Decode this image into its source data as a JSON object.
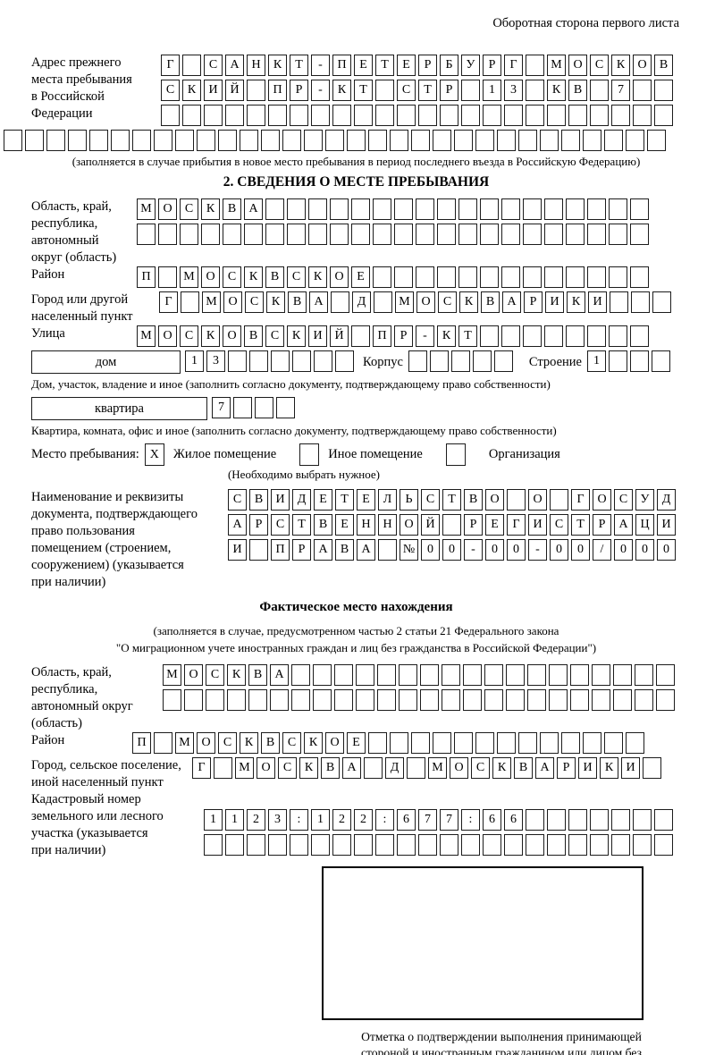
{
  "header": {
    "note": "Оборотная сторона первого листа"
  },
  "prev_address": {
    "label": "Адрес прежнего\nместа пребывания\nв Российской\nФедерации",
    "rows": [
      {
        "cells": 24,
        "text": "Г САНКТ-ПЕТЕРБУРГ МОСКОВ"
      },
      {
        "cells": 24,
        "text": "СКИЙ ПР-КТ СТР 13 КВ 7"
      },
      {
        "cells": 24,
        "text": ""
      }
    ],
    "overflow_row": {
      "cells": 31,
      "text": ""
    },
    "caption": "(заполняется в случае прибытия в новое место пребывания в период последнего въезда в Российскую Федерацию)"
  },
  "section2": {
    "title": "2. СВЕДЕНИЯ О МЕСТЕ ПРЕБЫВАНИЯ",
    "region": {
      "label": "Область, край,\nреспублика,\nавтономный\nокруг (область)",
      "rows": [
        {
          "cells": 24,
          "text": "МОСКВА"
        },
        {
          "cells": 24,
          "text": ""
        }
      ]
    },
    "district": {
      "label": "Район",
      "row": {
        "cells": 24,
        "text": "П МОСКВСКОЕ"
      }
    },
    "city": {
      "label": "Город или другой\nнаселенный пункт",
      "row": {
        "cells": 24,
        "text": "Г МОСКВА Д МОСКВАРИКИ"
      }
    },
    "street": {
      "label": "Улица",
      "row": {
        "cells": 24,
        "text": "МОСКОВСКИЙ ПР-КТ"
      }
    },
    "house": {
      "box_label": "дом",
      "row": {
        "cells": 8,
        "text": "13"
      },
      "korpus_label": "Корпус",
      "korpus_row": {
        "cells": 5,
        "text": ""
      },
      "stroenie_label": "Строение",
      "stroenie_row": {
        "cells": 4,
        "text": "1"
      },
      "caption": "Дом, участок, владение и иное (заполнить согласно документу, подтверждающему право собственности)"
    },
    "apartment": {
      "box_label": "квартира",
      "row": {
        "cells": 4,
        "text": "7"
      },
      "caption": "Квартира, комната, офис и иное (заполнить согласно документу, подтверждающему право собственности)"
    },
    "stay_type": {
      "label": "Место пребывания:",
      "options": [
        {
          "label": "Жилое помещение",
          "mark": "X"
        },
        {
          "label": "Иное помещение",
          "mark": ""
        },
        {
          "label": "Организация",
          "mark": ""
        }
      ],
      "note": "(Необходимо выбрать нужное)"
    },
    "document": {
      "label": "Наименование и реквизиты\nдокумента, подтверждающего\nправо пользования\nпомещением (строением,\nсооружением) (указывается\nпри наличии)",
      "rows": [
        {
          "cells": 21,
          "text": "СВИДЕТЕЛЬСТВО О ГОСУД"
        },
        {
          "cells": 21,
          "text": "АРСТВЕННОЙ РЕГИСТРАЦИ"
        },
        {
          "cells": 21,
          "text": "И ПРАВА №00-00-00/000"
        }
      ]
    }
  },
  "actual_location": {
    "title": "Фактическое место нахождения",
    "note": "(заполняется в случае, предусмотренном частью 2 статьи 21 Федерального закона\n\"О миграционном учете иностранных граждан и лиц без гражданства в Российской Федерации\")",
    "region": {
      "label": "Область, край,\nреспублика,\nавтономный округ\n(область)",
      "rows": [
        {
          "cells": 24,
          "text": "МОСКВА"
        },
        {
          "cells": 24,
          "text": ""
        }
      ]
    },
    "district": {
      "label": "Район",
      "row": {
        "cells": 24,
        "text": "П МОСКВСКОЕ"
      }
    },
    "city": {
      "label": "Город, сельское поселение,\nиной населенный пункт",
      "row": {
        "cells": 22,
        "text": "Г МОСКВА Д МОСКВАРИКИ"
      }
    },
    "cadastre": {
      "label": "Кадастровый номер\nземельного или лесного\nучастка (указывается\nпри наличии)",
      "rows": [
        {
          "cells": 22,
          "text": "1123:122:677:66"
        },
        {
          "cells": 22,
          "text": ""
        }
      ]
    }
  },
  "stamp": {
    "caption": "Отметка о подтверждении выполнения принимающей\nстороной и иностранным гражданином или лицом без\nгражданства действий, необходимых для его постановки\nна учет по месту пребывания"
  }
}
